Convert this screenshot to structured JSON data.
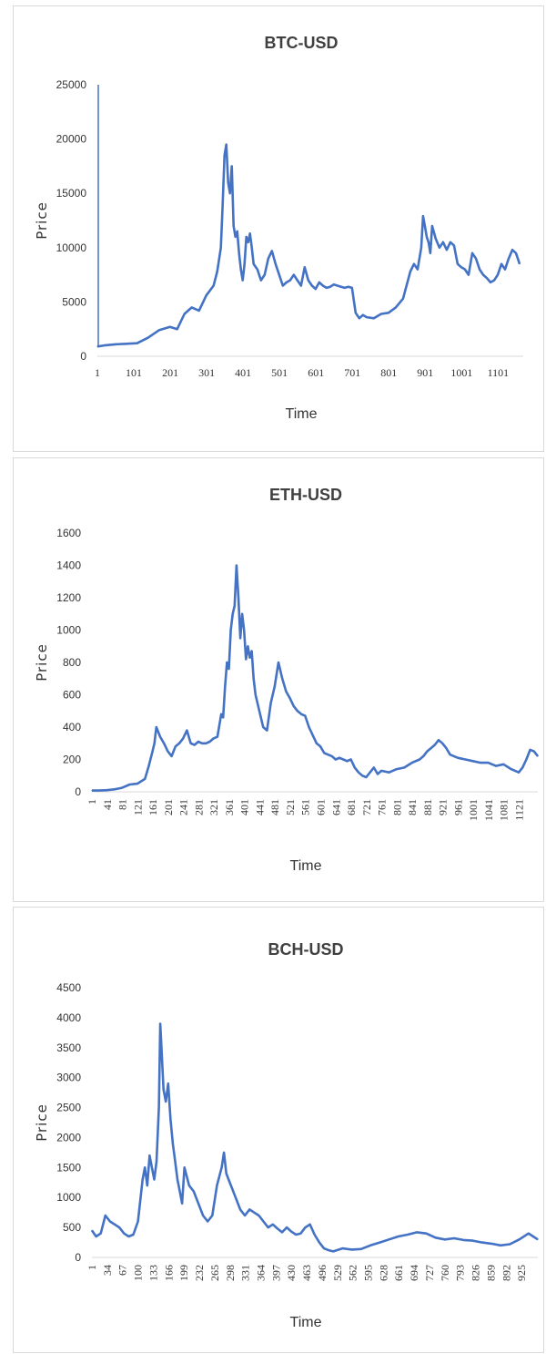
{
  "chart_data": [
    {
      "type": "line",
      "title": "BTC-USD",
      "xlabel": "Time",
      "ylabel": "Price",
      "ylim": [
        0,
        25000
      ],
      "yticks": [
        "0",
        "5000",
        "10000",
        "15000",
        "20000",
        "25000"
      ],
      "xlim": [
        1,
        1170
      ],
      "xticks": [
        "1",
        "101",
        "201",
        "301",
        "401",
        "501",
        "601",
        "701",
        "801",
        "901",
        "1001",
        "1101"
      ],
      "xtick_rotation": 0,
      "color": "#4472c4",
      "series": [
        {
          "x": [
            1,
            20,
            50,
            80,
            110,
            140,
            170,
            200,
            220,
            240,
            260,
            280,
            300,
            320,
            330,
            340,
            345,
            350,
            355,
            360,
            365,
            370,
            375,
            380,
            385,
            390,
            395,
            400,
            405,
            410,
            415,
            420,
            425,
            430,
            440,
            450,
            460,
            470,
            480,
            490,
            500,
            510,
            520,
            530,
            540,
            550,
            560,
            570,
            580,
            590,
            600,
            610,
            620,
            630,
            640,
            650,
            660,
            670,
            680,
            690,
            700,
            710,
            720,
            730,
            740,
            760,
            780,
            800,
            820,
            840,
            860,
            870,
            880,
            890,
            895,
            900,
            905,
            910,
            915,
            920,
            930,
            940,
            950,
            960,
            970,
            980,
            990,
            1000,
            1010,
            1020,
            1030,
            1040,
            1050,
            1060,
            1070,
            1080,
            1090,
            1100,
            1110,
            1120,
            1130,
            1140,
            1150,
            1160
          ],
          "y": [
            900,
            1000,
            1100,
            1150,
            1200,
            1700,
            2400,
            2700,
            2500,
            3900,
            4500,
            4200,
            5600,
            6500,
            7800,
            10000,
            14000,
            18500,
            19500,
            16000,
            15000,
            17500,
            12000,
            11000,
            11500,
            9500,
            8000,
            7000,
            8500,
            11000,
            10500,
            11300,
            10000,
            8500,
            8000,
            7000,
            7500,
            9000,
            9700,
            8500,
            7500,
            6500,
            6800,
            7000,
            7500,
            7000,
            6500,
            8200,
            7000,
            6500,
            6200,
            6800,
            6500,
            6300,
            6400,
            6600,
            6500,
            6400,
            6300,
            6400,
            6300,
            4000,
            3500,
            3800,
            3600,
            3500,
            3900,
            4000,
            4500,
            5300,
            7800,
            8500,
            8000,
            10000,
            12900,
            12000,
            11000,
            10500,
            9500,
            12000,
            10800,
            10000,
            10500,
            9800,
            10500,
            10200,
            8500,
            8200,
            8000,
            7500,
            9500,
            9000,
            8000,
            7500,
            7200,
            6800,
            7000,
            7500,
            8500,
            8000,
            9000,
            9800,
            9500,
            8500
          ]
        }
      ]
    },
    {
      "type": "line",
      "title": "ETH-USD",
      "xlabel": "Time",
      "ylabel": "Price",
      "ylim": [
        0,
        1600
      ],
      "yticks": [
        "0",
        "200",
        "400",
        "600",
        "800",
        "1000",
        "1200",
        "1400",
        "1600"
      ],
      "xlim": [
        1,
        1170
      ],
      "xticks": [
        "1",
        "41",
        "81",
        "121",
        "161",
        "201",
        "241",
        "281",
        "321",
        "361",
        "401",
        "441",
        "481",
        "521",
        "561",
        "601",
        "641",
        "681",
        "721",
        "761",
        "801",
        "841",
        "881",
        "921",
        "961",
        "1001",
        "1041",
        "1081",
        "1121"
      ],
      "xtick_rotation": -90,
      "color": "#4472c4",
      "series": [
        {
          "x": [
            1,
            20,
            40,
            60,
            80,
            100,
            120,
            140,
            150,
            160,
            165,
            170,
            180,
            190,
            200,
            210,
            220,
            230,
            240,
            250,
            260,
            270,
            280,
            290,
            300,
            310,
            320,
            330,
            340,
            345,
            350,
            355,
            360,
            365,
            370,
            375,
            380,
            385,
            390,
            395,
            400,
            405,
            410,
            415,
            420,
            425,
            430,
            440,
            450,
            460,
            470,
            480,
            490,
            500,
            510,
            520,
            530,
            540,
            550,
            560,
            570,
            580,
            590,
            600,
            610,
            620,
            630,
            640,
            650,
            660,
            670,
            680,
            690,
            700,
            710,
            720,
            730,
            740,
            750,
            760,
            780,
            800,
            820,
            840,
            860,
            870,
            880,
            890,
            900,
            910,
            920,
            930,
            940,
            950,
            960,
            980,
            1000,
            1020,
            1040,
            1060,
            1080,
            1100,
            1110,
            1120,
            1130,
            1140,
            1150,
            1160,
            1170
          ],
          "y": [
            8,
            8,
            10,
            15,
            25,
            45,
            50,
            80,
            160,
            250,
            300,
            400,
            340,
            300,
            250,
            220,
            280,
            300,
            330,
            380,
            300,
            290,
            310,
            300,
            300,
            310,
            330,
            340,
            480,
            460,
            650,
            800,
            760,
            1000,
            1100,
            1150,
            1400,
            1200,
            950,
            1100,
            1000,
            820,
            900,
            830,
            870,
            700,
            600,
            500,
            400,
            380,
            550,
            650,
            800,
            700,
            620,
            580,
            530,
            500,
            480,
            470,
            400,
            350,
            300,
            280,
            240,
            230,
            220,
            200,
            210,
            200,
            190,
            200,
            150,
            120,
            100,
            90,
            120,
            150,
            110,
            130,
            120,
            140,
            150,
            180,
            200,
            220,
            250,
            270,
            290,
            320,
            300,
            270,
            230,
            220,
            210,
            200,
            190,
            180,
            180,
            160,
            170,
            140,
            130,
            120,
            150,
            200,
            260,
            250,
            220
          ]
        }
      ]
    },
    {
      "type": "line",
      "title": "BCH-USD",
      "xlabel": "Time",
      "ylabel": "Price",
      "ylim": [
        0,
        4500
      ],
      "yticks": [
        "0",
        "500",
        "1000",
        "1500",
        "2000",
        "2500",
        "3000",
        "3500",
        "4000",
        "4500"
      ],
      "xlim": [
        1,
        960
      ],
      "xticks": [
        "1",
        "34",
        "67",
        "100",
        "133",
        "166",
        "199",
        "232",
        "265",
        "298",
        "331",
        "364",
        "397",
        "430",
        "463",
        "496",
        "529",
        "562",
        "595",
        "628",
        "661",
        "694",
        "727",
        "760",
        "793",
        "826",
        "859",
        "892",
        "925"
      ],
      "xtick_rotation": -90,
      "color": "#4472c4",
      "series": [
        {
          "x": [
            1,
            10,
            20,
            30,
            40,
            50,
            60,
            70,
            80,
            90,
            100,
            110,
            115,
            120,
            125,
            130,
            135,
            140,
            145,
            148,
            150,
            155,
            160,
            165,
            170,
            175,
            180,
            185,
            190,
            195,
            200,
            210,
            220,
            230,
            240,
            250,
            260,
            270,
            280,
            285,
            290,
            295,
            300,
            310,
            320,
            330,
            340,
            350,
            360,
            370,
            380,
            390,
            400,
            410,
            420,
            430,
            440,
            450,
            460,
            470,
            480,
            490,
            500,
            510,
            520,
            540,
            560,
            580,
            600,
            620,
            640,
            660,
            680,
            700,
            720,
            740,
            760,
            780,
            800,
            820,
            840,
            860,
            880,
            900,
            920,
            940,
            950,
            960
          ],
          "y": [
            450,
            350,
            400,
            700,
            600,
            550,
            500,
            400,
            350,
            380,
            600,
            1300,
            1500,
            1200,
            1700,
            1500,
            1300,
            1600,
            2500,
            3900,
            3600,
            2800,
            2600,
            2900,
            2300,
            1900,
            1600,
            1300,
            1100,
            900,
            1500,
            1200,
            1100,
            900,
            700,
            600,
            700,
            1200,
            1500,
            1750,
            1400,
            1300,
            1200,
            1000,
            800,
            700,
            800,
            750,
            700,
            600,
            500,
            550,
            480,
            420,
            500,
            430,
            380,
            400,
            500,
            550,
            380,
            250,
            150,
            120,
            100,
            150,
            130,
            140,
            200,
            250,
            300,
            350,
            380,
            420,
            400,
            330,
            300,
            320,
            290,
            280,
            250,
            230,
            200,
            220,
            300,
            400,
            350,
            300
          ]
        }
      ]
    }
  ]
}
